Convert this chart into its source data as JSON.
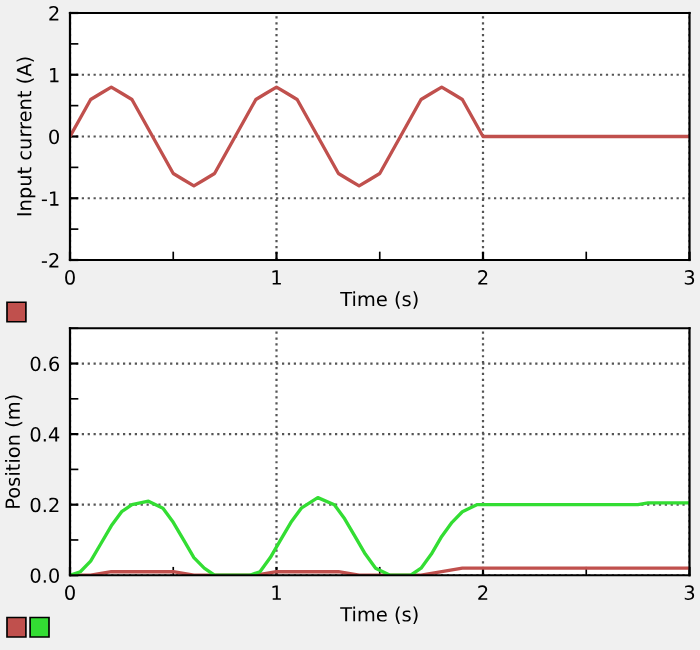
{
  "chart_data": [
    {
      "type": "line",
      "xlabel": "Time (s)",
      "ylabel": "Input current (A)",
      "xlim": [
        0,
        3
      ],
      "ylim": [
        -2,
        2
      ],
      "xticks": [
        0,
        1,
        2,
        3
      ],
      "yticks": [
        -2,
        -1,
        0,
        1,
        2
      ],
      "grid": true,
      "legend": false,
      "series": [
        {
          "color": "#c0504d",
          "x": [
            0,
            0.05,
            0.1,
            0.15,
            0.2,
            0.25,
            0.3,
            0.35,
            0.4,
            0.45,
            0.5,
            0.55,
            0.6,
            0.65,
            0.7,
            0.75,
            0.8,
            0.85,
            0.9,
            0.95,
            1.0,
            1.05,
            1.1,
            1.15,
            1.2,
            1.25,
            1.3,
            1.35,
            1.4,
            1.45,
            1.5,
            1.55,
            1.6,
            1.65,
            1.7,
            1.75,
            1.8,
            1.85,
            1.9,
            1.95,
            2.0,
            3.0
          ],
          "values": [
            0,
            0.3,
            0.6,
            0.7,
            0.8,
            0.7,
            0.6,
            0.3,
            0,
            -0.3,
            -0.6,
            -0.7,
            -0.8,
            -0.7,
            -0.6,
            -0.3,
            0,
            0.3,
            0.6,
            0.7,
            0.8,
            0.7,
            0.6,
            0.3,
            0,
            -0.3,
            -0.6,
            -0.7,
            -0.8,
            -0.7,
            -0.6,
            -0.3,
            0,
            0.3,
            0.6,
            0.7,
            0.8,
            0.7,
            0.6,
            0.3,
            0,
            0
          ]
        }
      ]
    },
    {
      "type": "line",
      "xlabel": "Time (s)",
      "ylabel": "Position (m)",
      "xlim": [
        0,
        3
      ],
      "ylim": [
        0,
        0.7
      ],
      "xticks": [
        0,
        1,
        2,
        3
      ],
      "yticks": [
        {
          "value": 0,
          "label": "0.0"
        },
        0.2,
        0.4,
        0.6
      ],
      "grid": true,
      "legend": false,
      "series": [
        {
          "color": "#c0504d",
          "x": [
            0,
            0.1,
            0.2,
            0.3,
            0.5,
            0.6,
            0.7,
            0.9,
            1.0,
            1.1,
            1.3,
            1.4,
            1.5,
            1.7,
            1.8,
            1.9,
            2.0,
            3.0
          ],
          "values": [
            0,
            0,
            0.01,
            0.01,
            0.01,
            0,
            0,
            0,
            0.01,
            0.01,
            0.01,
            0,
            0,
            0,
            0.01,
            0.02,
            0.02,
            0.02
          ]
        },
        {
          "color": "#33dd33",
          "x": [
            0,
            0.05,
            0.1,
            0.15,
            0.2,
            0.25,
            0.3,
            0.38,
            0.45,
            0.5,
            0.55,
            0.6,
            0.65,
            0.7,
            0.87,
            0.92,
            0.97,
            1.02,
            1.07,
            1.12,
            1.2,
            1.28,
            1.33,
            1.38,
            1.43,
            1.48,
            1.55,
            1.65,
            1.7,
            1.75,
            1.8,
            1.85,
            1.9,
            1.97,
            2.75,
            2.8,
            3.0
          ],
          "values": [
            0,
            0.01,
            0.04,
            0.09,
            0.14,
            0.18,
            0.2,
            0.21,
            0.19,
            0.15,
            0.1,
            0.05,
            0.02,
            0,
            0,
            0.01,
            0.05,
            0.1,
            0.15,
            0.19,
            0.22,
            0.2,
            0.16,
            0.11,
            0.06,
            0.02,
            0,
            0,
            0.02,
            0.06,
            0.11,
            0.15,
            0.18,
            0.2,
            0.2,
            0.205,
            0.205
          ]
        }
      ]
    }
  ]
}
